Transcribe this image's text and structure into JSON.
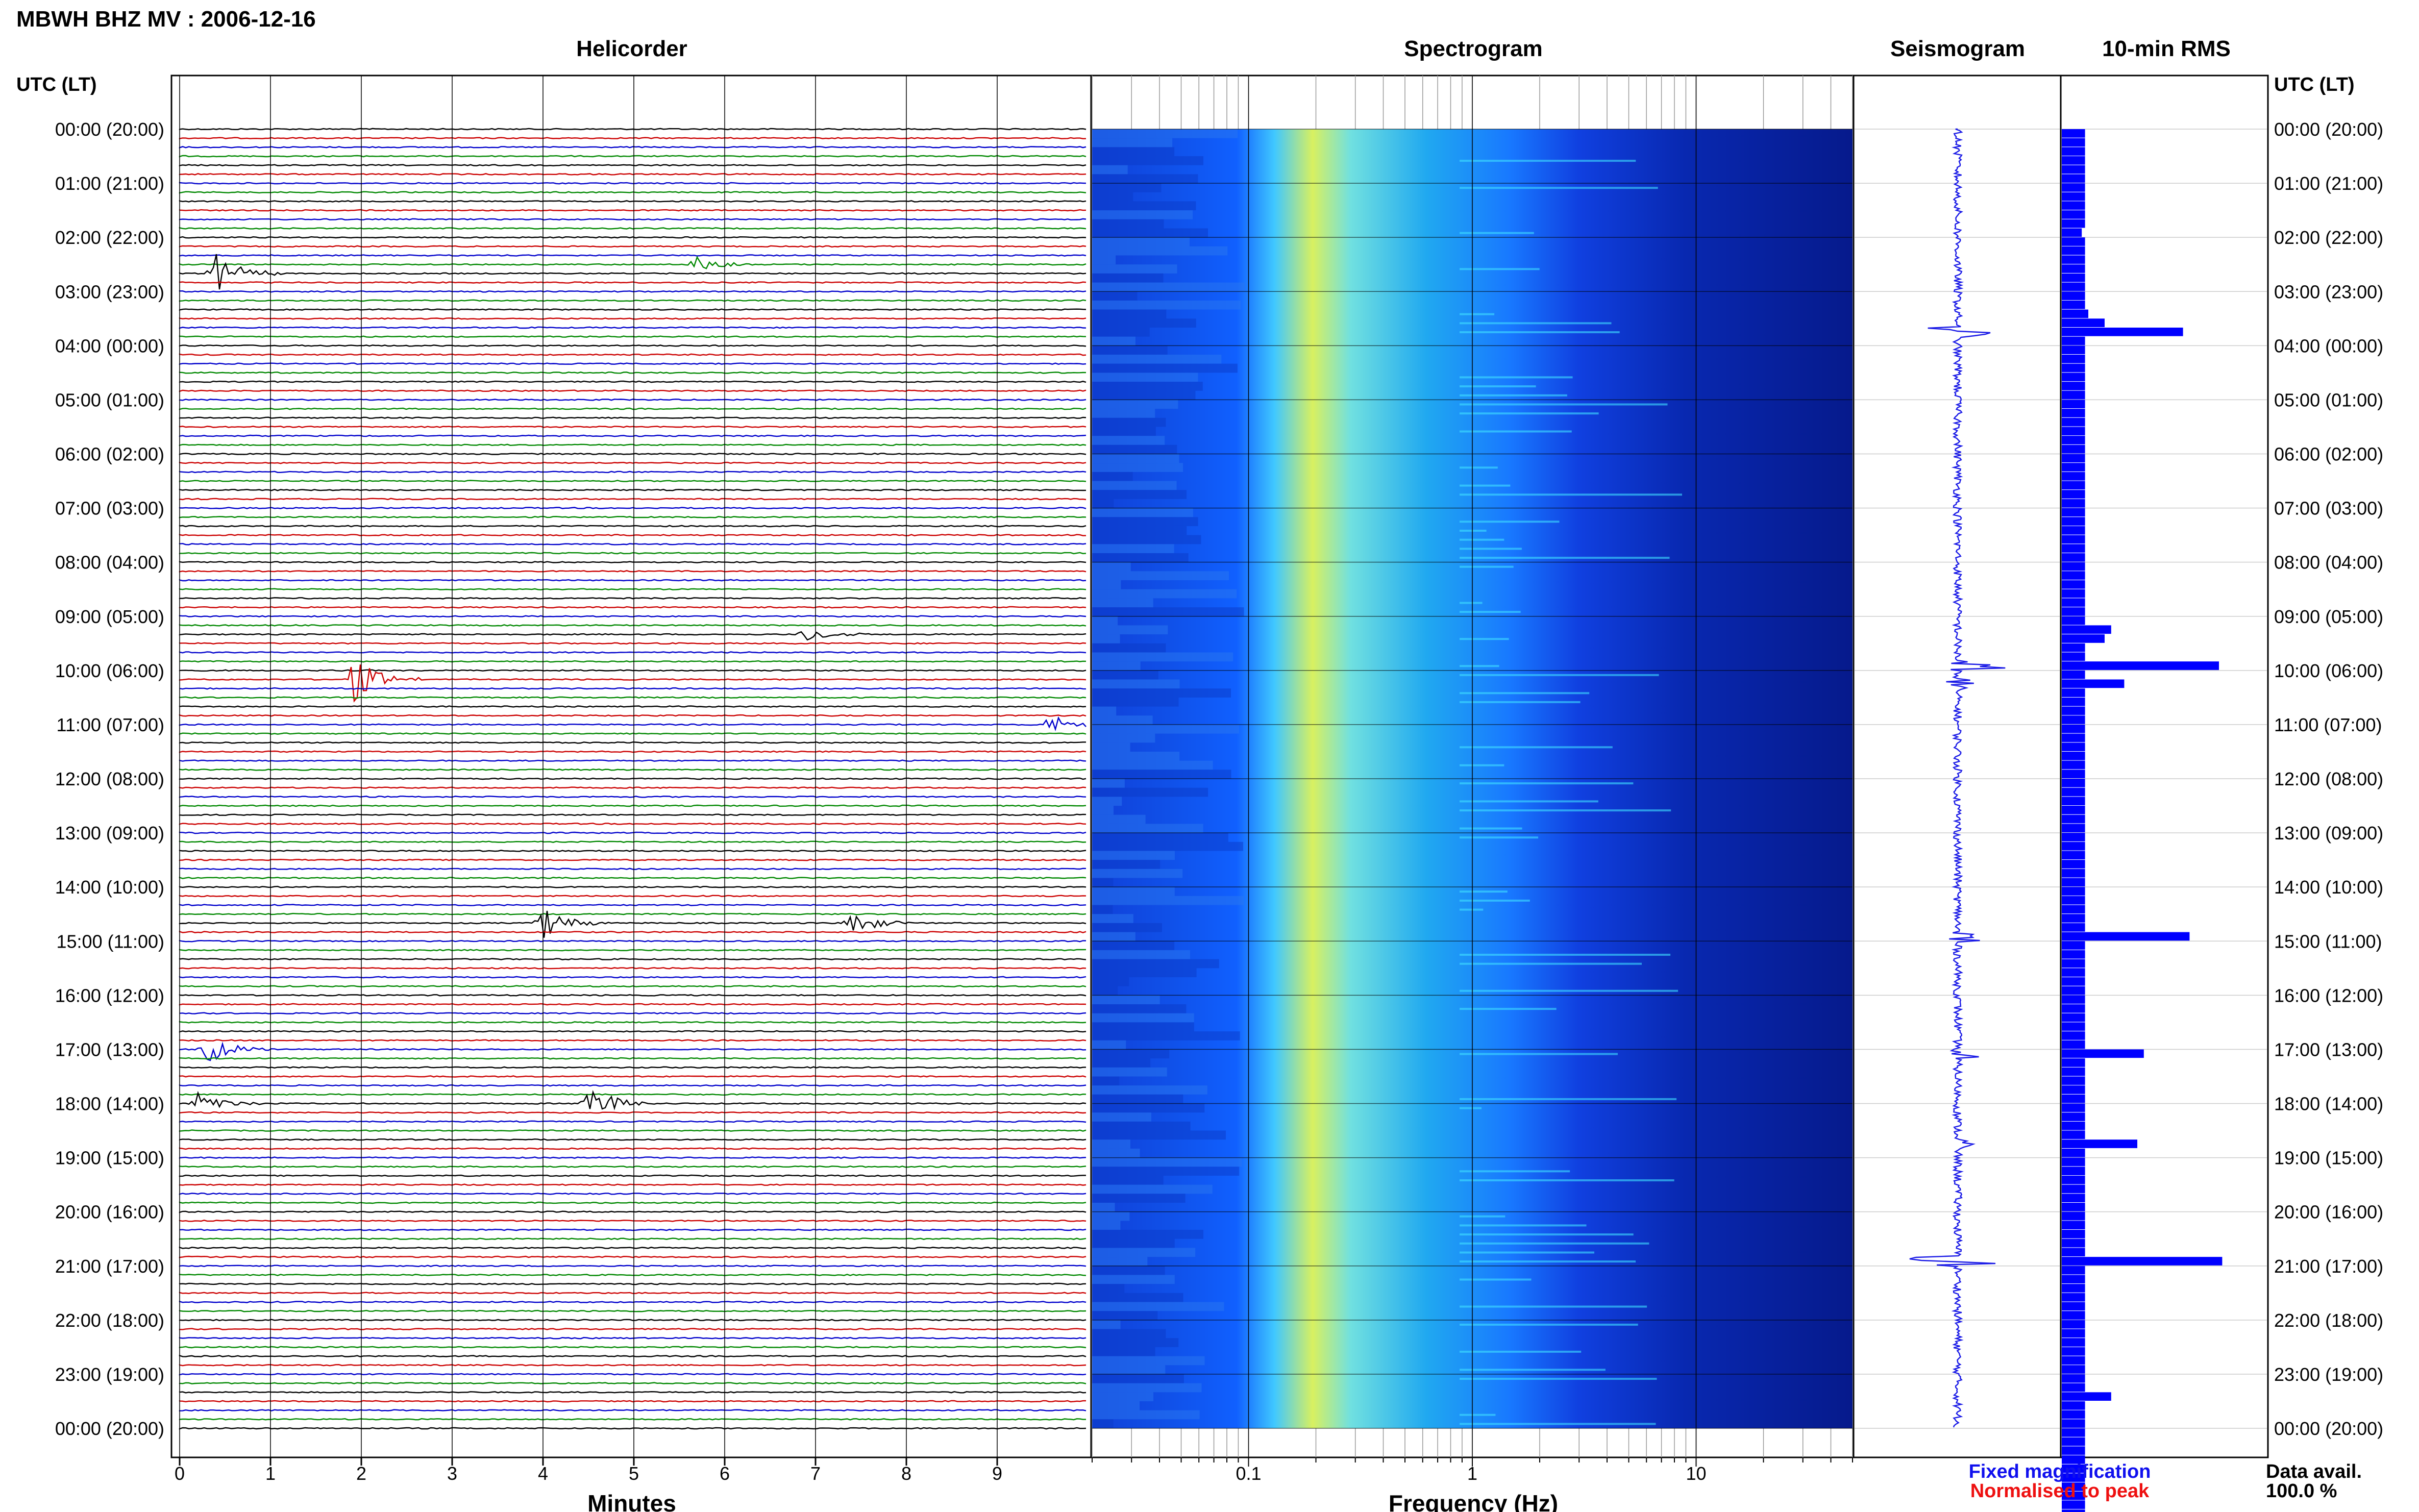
{
  "title": "MBWH BHZ MV : 2006-12-16",
  "panels": {
    "helicorder": "Helicorder",
    "spectrogram": "Spectrogram",
    "seismogram": "Seismogram",
    "rms": "10-min RMS"
  },
  "axis_header": "UTC (LT)",
  "time_labels": [
    "00:00 (20:00)",
    "01:00 (21:00)",
    "02:00 (22:00)",
    "03:00 (23:00)",
    "04:00 (00:00)",
    "05:00 (01:00)",
    "06:00 (02:00)",
    "07:00 (03:00)",
    "08:00 (04:00)",
    "09:00 (05:00)",
    "10:00 (06:00)",
    "11:00 (07:00)",
    "12:00 (08:00)",
    "13:00 (09:00)",
    "14:00 (10:00)",
    "15:00 (11:00)",
    "16:00 (12:00)",
    "17:00 (13:00)",
    "18:00 (14:00)",
    "19:00 (15:00)",
    "20:00 (16:00)",
    "21:00 (17:00)",
    "22:00 (18:00)",
    "23:00 (19:00)",
    "00:00 (20:00)"
  ],
  "x_axes": {
    "minutes": {
      "label": "Minutes",
      "ticks": [
        "0",
        "1",
        "2",
        "3",
        "4",
        "5",
        "6",
        "7",
        "8",
        "9"
      ]
    },
    "frequency": {
      "label": "Frequency (Hz)",
      "ticks": [
        "0.1",
        "1",
        "10"
      ]
    }
  },
  "legend": {
    "fixed": "Fixed magnification",
    "normalised": "Normalised to peak",
    "fixed_color": "#1010ee",
    "normalised_color": "#ee1010"
  },
  "data_avail": {
    "label": "Data avail.",
    "value": "100.0 %"
  },
  "colors": {
    "trace_cycle": [
      "#000000",
      "#cc0000",
      "#0000cc",
      "#008800"
    ],
    "spectrogram_low": "#00008b",
    "spectrogram_high": "#ffff55",
    "bar": "#0000ff"
  },
  "chart_data": {
    "type": "bar",
    "title": "10-min RMS",
    "ylabel": "UTC (LT)",
    "categories_per_hour": 6,
    "values": [
      4,
      4,
      4,
      4,
      4,
      4,
      4,
      4,
      4,
      4,
      4,
      3,
      4,
      4,
      4,
      4,
      4,
      4,
      4,
      4,
      5,
      10,
      34,
      4,
      4,
      4,
      4,
      4,
      4,
      4,
      4,
      4,
      4,
      4,
      4,
      4,
      4,
      4,
      4,
      4,
      4,
      4,
      4,
      4,
      4,
      4,
      4,
      4,
      4,
      4,
      4,
      4,
      4,
      4,
      4,
      12,
      10,
      4,
      4,
      45,
      4,
      16,
      4,
      4,
      4,
      4,
      4,
      4,
      4,
      4,
      4,
      4,
      4,
      4,
      4,
      4,
      4,
      4,
      4,
      4,
      4,
      4,
      4,
      4,
      4,
      4,
      4,
      4,
      4,
      36,
      4,
      4,
      4,
      4,
      4,
      4,
      4,
      4,
      4,
      4,
      4,
      4,
      22,
      4,
      4,
      4,
      4,
      4,
      4,
      4,
      4,
      4,
      20,
      4,
      4,
      4,
      4,
      4,
      4,
      4,
      4,
      4,
      4,
      4,
      4,
      46,
      4,
      4,
      4,
      4,
      4,
      4,
      4,
      4,
      4,
      4,
      4,
      4,
      4,
      4,
      12,
      4,
      4,
      4,
      4,
      4,
      4,
      4,
      4,
      4,
      4,
      4,
      4,
      4,
      4,
      4
    ],
    "events": [
      {
        "row": 16,
        "minute": 0.4,
        "color": 0,
        "amp": 2.4
      },
      {
        "row": 61,
        "minute": 1.9,
        "color": 2,
        "amp": 3.0
      },
      {
        "row": 88,
        "minute": 4.0,
        "color": 0,
        "amp": 2.2
      },
      {
        "row": 88,
        "minute": 7.4,
        "color": 0,
        "amp": 1.6
      },
      {
        "row": 102,
        "minute": 0.3,
        "color": 1,
        "amp": 1.8
      },
      {
        "row": 108,
        "minute": 4.5,
        "color": 0,
        "amp": 2.6
      },
      {
        "row": 108,
        "minute": 0.2,
        "color": 0,
        "amp": 1.4
      },
      {
        "row": 66,
        "minute": 9.6,
        "color": 3,
        "amp": 1.2
      },
      {
        "row": 15,
        "minute": 5.7,
        "color": 3,
        "amp": 1.0
      },
      {
        "row": 56,
        "minute": 6.9,
        "color": 1,
        "amp": 1.1
      }
    ]
  }
}
